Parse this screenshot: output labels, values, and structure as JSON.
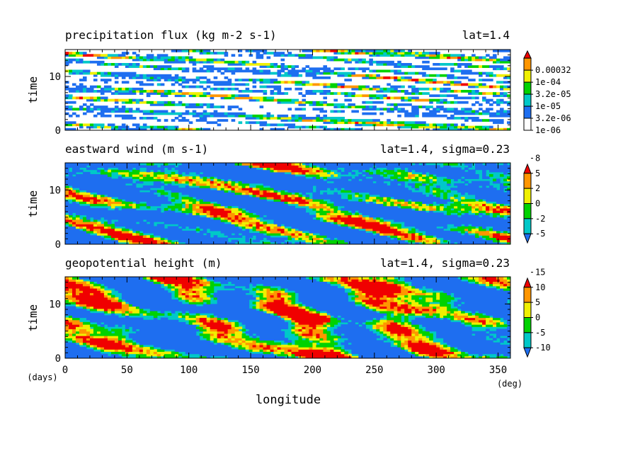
{
  "colors": {
    "white": "#ffffff",
    "blue": "#1e6ef0",
    "cyan": "#00c8c8",
    "green": "#00d200",
    "yellow": "#f0f000",
    "orange": "#ff9600",
    "red": "#f00000"
  },
  "shared_axes": {
    "xlabel": "longitude",
    "xunit": "(deg)",
    "yunit": "(days)",
    "xticks": [
      0,
      50,
      100,
      150,
      200,
      250,
      300,
      350
    ],
    "xlim": [
      0,
      360
    ]
  },
  "chart_data": [
    {
      "type": "heatmap",
      "title": "precipitation flux (kg m-2 s-1)",
      "subtitle": "lat=1.4",
      "ylabel": "time",
      "ylim": [
        0,
        15
      ],
      "yticks": [
        0,
        10
      ],
      "pattern": "sparse eastward-propagating precipitation streaks",
      "colorbar": {
        "labels": [
          "1e-06",
          "3.2e-06",
          "1e-05",
          "3.2e-05",
          "1e-04",
          "0.00032"
        ],
        "colors": [
          "#ffffff",
          "#1e6ef0",
          "#00c8c8",
          "#00d200",
          "#f0f000",
          "#ff9600",
          "#f00000"
        ],
        "extend_high": true,
        "extend_low": false
      }
    },
    {
      "type": "heatmap",
      "title": "eastward wind (m s-1)",
      "subtitle": "lat=1.4, sigma=0.23",
      "ylabel": "time",
      "ylim": [
        0,
        15
      ],
      "yticks": [
        0,
        10
      ],
      "pattern": "large-scale westerly/easterly wind anomalies",
      "colorbar": {
        "labels": [
          "-5",
          "-2",
          "0",
          "2",
          "5",
          "8"
        ],
        "colors": [
          "#1e6ef0",
          "#00c8c8",
          "#00d200",
          "#f0f000",
          "#ff9600",
          "#f00000"
        ],
        "extend_high": true,
        "extend_low": true
      }
    },
    {
      "type": "heatmap",
      "title": "geopotential height (m)",
      "subtitle": "lat=1.4, sigma=0.23",
      "ylabel": "time",
      "ylim": [
        0,
        15
      ],
      "yticks": [
        0,
        10
      ],
      "pattern": "zonally elongated height anomalies",
      "colorbar": {
        "labels": [
          "-10",
          "-5",
          "0",
          "5",
          "10",
          "15"
        ],
        "colors": [
          "#1e6ef0",
          "#00c8c8",
          "#00d200",
          "#f0f000",
          "#ff9600",
          "#f00000"
        ],
        "extend_high": true,
        "extend_low": true
      }
    }
  ]
}
